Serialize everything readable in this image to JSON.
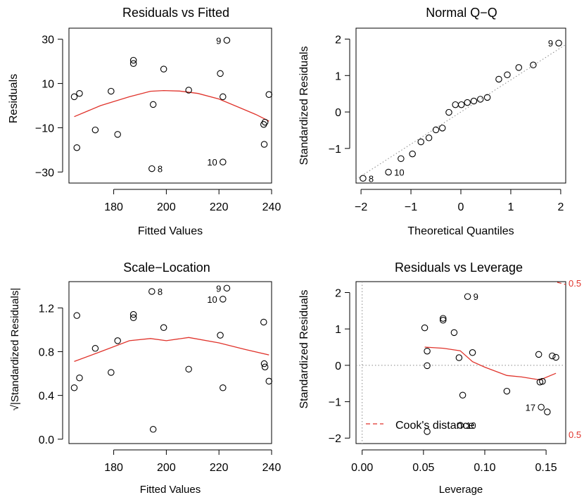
{
  "chart_data": [
    {
      "type": "scatter",
      "title": "Residuals vs Fitted",
      "xlabel": "Fitted Values",
      "ylabel": "Residuals",
      "xlim": [
        163,
        240
      ],
      "ylim": [
        -35,
        35
      ],
      "xticks": [
        180,
        200,
        220,
        240
      ],
      "xtick_labels": [
        "180",
        "200",
        "220",
        "240"
      ],
      "yticks": [
        -30,
        -10,
        10,
        30
      ],
      "ytick_labels": [
        "−30",
        "−10",
        "10",
        "30"
      ],
      "points": [
        {
          "x": 165,
          "y": 4
        },
        {
          "x": 166,
          "y": -19
        },
        {
          "x": 167,
          "y": 5.5
        },
        {
          "x": 173,
          "y": -11
        },
        {
          "x": 179,
          "y": 6.5
        },
        {
          "x": 181.5,
          "y": -13
        },
        {
          "x": 187.5,
          "y": 19
        },
        {
          "x": 187.5,
          "y": 20.5
        },
        {
          "x": 194.5,
          "y": -28.5,
          "label": "8"
        },
        {
          "x": 195,
          "y": 0.5
        },
        {
          "x": 199,
          "y": 16.5
        },
        {
          "x": 208.5,
          "y": 7
        },
        {
          "x": 220.5,
          "y": 14.5
        },
        {
          "x": 221.5,
          "y": 4
        },
        {
          "x": 221.5,
          "y": -25.5,
          "label": "10"
        },
        {
          "x": 223,
          "y": 29.5,
          "label": "9"
        },
        {
          "x": 237,
          "y": -8.5
        },
        {
          "x": 237.2,
          "y": -17.5
        },
        {
          "x": 237.5,
          "y": -7.5
        },
        {
          "x": 239,
          "y": 5
        }
      ],
      "smooth": [
        [
          165,
          -5
        ],
        [
          175,
          0
        ],
        [
          186,
          4
        ],
        [
          194,
          6.5
        ],
        [
          199,
          6.8
        ],
        [
          205,
          6.6
        ],
        [
          212,
          5.5
        ],
        [
          220,
          3
        ],
        [
          228,
          -1
        ],
        [
          234,
          -4
        ],
        [
          239,
          -7
        ]
      ]
    },
    {
      "type": "scatter",
      "title": "Normal Q−Q",
      "xlabel": "Theoretical Quantiles",
      "ylabel": "Standardized Residuals",
      "xlim": [
        -2.1,
        2.1
      ],
      "ylim": [
        -1.95,
        2.3
      ],
      "xticks": [
        -2,
        -1,
        0,
        1,
        2
      ],
      "xtick_labels": [
        "−2",
        "−1",
        "0",
        "1",
        "2"
      ],
      "yticks": [
        -1,
        0,
        1,
        2
      ],
      "ytick_labels": [
        "−1",
        "0",
        "1",
        "2"
      ],
      "points": [
        {
          "x": -1.96,
          "y": -1.82,
          "label": "8"
        },
        {
          "x": -1.45,
          "y": -1.65,
          "label": "10"
        },
        {
          "x": -1.2,
          "y": -1.28
        },
        {
          "x": -0.97,
          "y": -1.15
        },
        {
          "x": -0.8,
          "y": -0.82
        },
        {
          "x": -0.64,
          "y": -0.71
        },
        {
          "x": -0.5,
          "y": -0.49
        },
        {
          "x": -0.37,
          "y": -0.44
        },
        {
          "x": -0.24,
          "y": -0.01
        },
        {
          "x": -0.11,
          "y": 0.2
        },
        {
          "x": 0.01,
          "y": 0.2
        },
        {
          "x": 0.13,
          "y": 0.26
        },
        {
          "x": 0.26,
          "y": 0.3
        },
        {
          "x": 0.39,
          "y": 0.35
        },
        {
          "x": 0.53,
          "y": 0.4
        },
        {
          "x": 0.76,
          "y": 0.9
        },
        {
          "x": 0.93,
          "y": 1.02
        },
        {
          "x": 1.16,
          "y": 1.22
        },
        {
          "x": 1.45,
          "y": 1.29
        },
        {
          "x": 1.96,
          "y": 1.89,
          "label": "9"
        }
      ],
      "refline": [
        [
          -2.1,
          -1.85
        ],
        [
          2.1,
          1.85
        ]
      ]
    },
    {
      "type": "scatter",
      "title": "Scale−Location",
      "xlabel": "Fitted Values",
      "ylabel": "√|Standardized Residuals|",
      "xlim": [
        163,
        240
      ],
      "ylim": [
        -0.04,
        1.44
      ],
      "xticks": [
        180,
        200,
        220,
        240
      ],
      "xtick_labels": [
        "180",
        "200",
        "220",
        "240"
      ],
      "yticks": [
        0.0,
        0.4,
        0.8,
        1.2
      ],
      "ytick_labels": [
        "0.0",
        "0.4",
        "0.8",
        "1.2"
      ],
      "points": [
        {
          "x": 165,
          "y": 0.47
        },
        {
          "x": 166,
          "y": 1.13
        },
        {
          "x": 167,
          "y": 0.56
        },
        {
          "x": 173,
          "y": 0.83
        },
        {
          "x": 179,
          "y": 0.61
        },
        {
          "x": 181.5,
          "y": 0.9
        },
        {
          "x": 187.5,
          "y": 1.11
        },
        {
          "x": 187.5,
          "y": 1.14
        },
        {
          "x": 194.5,
          "y": 1.35,
          "label": "8"
        },
        {
          "x": 195,
          "y": 0.09
        },
        {
          "x": 199,
          "y": 1.02
        },
        {
          "x": 208.5,
          "y": 0.64
        },
        {
          "x": 220.5,
          "y": 0.95
        },
        {
          "x": 221.5,
          "y": 1.28,
          "label": "10"
        },
        {
          "x": 221.5,
          "y": 0.47
        },
        {
          "x": 223,
          "y": 1.38,
          "label": "9"
        },
        {
          "x": 237,
          "y": 1.07
        },
        {
          "x": 237.2,
          "y": 0.69
        },
        {
          "x": 237.5,
          "y": 0.66
        },
        {
          "x": 239,
          "y": 0.53
        }
      ],
      "smooth": [
        [
          165,
          0.71
        ],
        [
          175,
          0.8
        ],
        [
          186,
          0.9
        ],
        [
          194,
          0.92
        ],
        [
          200,
          0.9
        ],
        [
          208.5,
          0.93
        ],
        [
          220,
          0.88
        ],
        [
          230,
          0.82
        ],
        [
          239,
          0.77
        ]
      ]
    },
    {
      "type": "scatter",
      "title": "Residuals vs Leverage",
      "xlabel": "Leverage",
      "ylabel": "Standardized Residuals",
      "xlim": [
        -0.005,
        0.166
      ],
      "ylim": [
        -2.15,
        2.3
      ],
      "xticks": [
        0.0,
        0.05,
        0.1,
        0.15
      ],
      "xtick_labels": [
        "0.00",
        "0.05",
        "0.10",
        "0.15"
      ],
      "yticks": [
        -2,
        -1,
        0,
        1,
        2
      ],
      "ytick_labels": [
        "−2",
        "−1",
        "0",
        "1",
        "2"
      ],
      "points": [
        {
          "x": 0.051,
          "y": 1.03
        },
        {
          "x": 0.053,
          "y": 0.39
        },
        {
          "x": 0.053,
          "y": -0.01
        },
        {
          "x": 0.053,
          "y": -1.82
        },
        {
          "x": 0.066,
          "y": 1.24
        },
        {
          "x": 0.066,
          "y": 1.29
        },
        {
          "x": 0.075,
          "y": 0.9
        },
        {
          "x": 0.079,
          "y": 0.21
        },
        {
          "x": 0.08,
          "y": -1.65,
          "label": "10"
        },
        {
          "x": 0.082,
          "y": -0.82
        },
        {
          "x": 0.086,
          "y": 1.89,
          "label": "9"
        },
        {
          "x": 0.09,
          "y": 0.35
        },
        {
          "x": 0.118,
          "y": -0.71
        },
        {
          "x": 0.144,
          "y": 0.3
        },
        {
          "x": 0.145,
          "y": -0.46
        },
        {
          "x": 0.147,
          "y": -0.44
        },
        {
          "x": 0.146,
          "y": -1.15,
          "label": "17"
        },
        {
          "x": 0.151,
          "y": -1.28
        },
        {
          "x": 0.155,
          "y": 0.26
        },
        {
          "x": 0.158,
          "y": 0.22
        }
      ],
      "smooth": [
        [
          0.051,
          0.5
        ],
        [
          0.066,
          0.47
        ],
        [
          0.08,
          0.4
        ],
        [
          0.09,
          0.1
        ],
        [
          0.1,
          -0.05
        ],
        [
          0.118,
          -0.28
        ],
        [
          0.13,
          -0.32
        ],
        [
          0.145,
          -0.4
        ],
        [
          0.158,
          -0.22
        ]
      ],
      "cooks_distance": {
        "label": "Cook's distance",
        "contour_labels": [
          "0.5",
          "0.5"
        ]
      },
      "legend": {
        "label": "Cook's distance",
        "position": "bottom-left"
      }
    }
  ]
}
